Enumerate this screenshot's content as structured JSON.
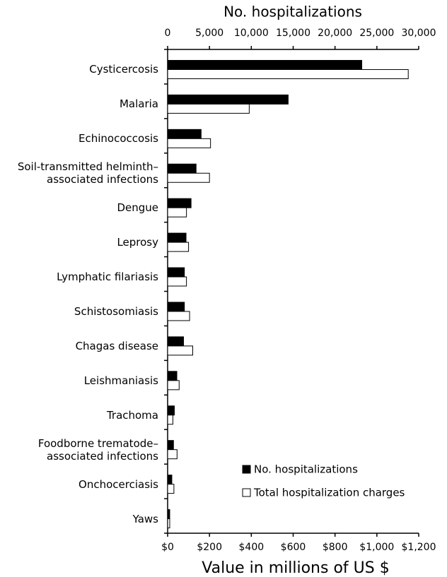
{
  "chart_data": {
    "type": "hbar",
    "x2_axis_label": "No. hospitalizations",
    "x_axis_label": "Value in millions of US $",
    "categories": [
      "Cysticercosis",
      "Malaria",
      "Echinococcosis",
      "Soil-transmitted helminth–\nassociated infections",
      "Dengue",
      "Leprosy",
      "Lymphatic filariasis",
      "Schistosomiasis",
      "Chagas disease",
      "Leishmaniasis",
      "Trachoma",
      "Foodborne trematode–\nassociated infections",
      "Onchocerciasis",
      "Yaws"
    ],
    "series": [
      {
        "name": "No. hospitalizations",
        "color": "#000000",
        "axis": "x2",
        "values": [
          23200,
          14400,
          4000,
          3400,
          2800,
          2200,
          2000,
          2000,
          1900,
          1100,
          800,
          700,
          500,
          250
        ]
      },
      {
        "name": "Total hospitalization charges",
        "color": "#ffffff",
        "axis": "x",
        "values": [
          1150,
          390,
          205,
          200,
          90,
          100,
          90,
          105,
          120,
          55,
          25,
          45,
          30,
          10
        ]
      }
    ],
    "x2lim": [
      0,
      30000
    ],
    "x2ticks": [
      0,
      {
        "value": 5000,
        "label": "5,000"
      },
      {
        "value": 10000,
        "label": "10,000"
      },
      {
        "value": 15000,
        "label": "15,000"
      },
      {
        "value": 20000,
        "label": "20,000"
      },
      {
        "value": 25000,
        "label": "25,000"
      },
      {
        "value": 30000,
        "label": "30,000"
      }
    ],
    "xlim": [
      0,
      1200
    ],
    "xticks": [
      {
        "value": 0,
        "label": "$0"
      },
      {
        "value": 200,
        "label": "$200"
      },
      {
        "value": 400,
        "label": "$400"
      },
      {
        "value": 600,
        "label": "$600"
      },
      {
        "value": 800,
        "label": "$800"
      },
      {
        "value": 1000,
        "label": "$1,000"
      },
      {
        "value": 1200,
        "label": "$1,200"
      }
    ],
    "legend": "lower right"
  }
}
